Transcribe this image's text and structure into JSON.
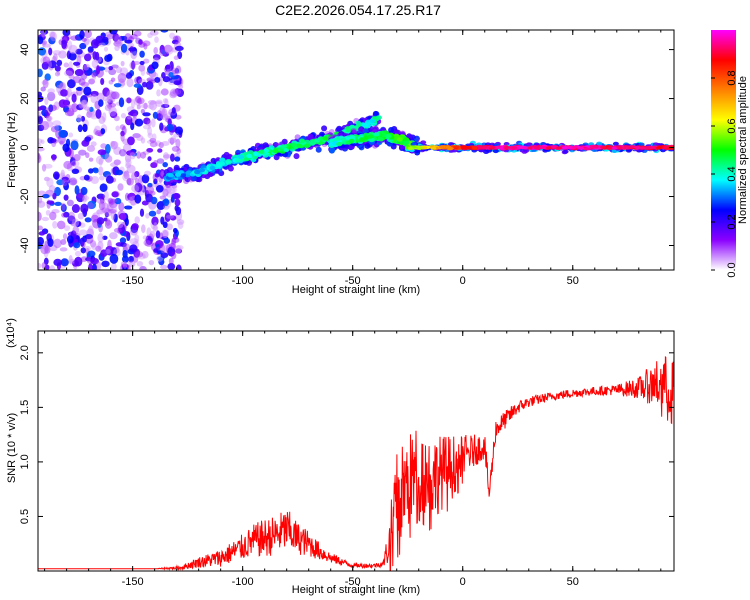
{
  "title": "C2E2.2026.054.17.25.R17",
  "chart_data": [
    {
      "type": "heatmap",
      "xlabel": "Height of straight line (km)",
      "ylabel": "Frequency (Hz)",
      "xlim": [
        -193,
        96
      ],
      "ylim": [
        -50,
        48
      ],
      "xticks": [
        -150,
        -100,
        -50,
        0,
        50
      ],
      "yticks": [
        -40,
        -20,
        0,
        20,
        40
      ],
      "colorbar": {
        "label": "Normalized spectral amplitude",
        "range": [
          0,
          1
        ],
        "ticks": [
          "0.0",
          "0.2",
          "0.4",
          "0.6",
          "0.8"
        ],
        "colormap": [
          "#ffffff",
          "#8b00ff",
          "#0000ff",
          "#00ffff",
          "#00ff00",
          "#ffff00",
          "#ff8000",
          "#ff0000",
          "#ff00ff"
        ]
      },
      "features": [
        {
          "name": "noise",
          "x_range": [
            -193,
            -128
          ],
          "freq_range": [
            -50,
            48
          ],
          "amplitude": [
            0.05,
            0.3
          ]
        },
        {
          "name": "rising_track",
          "x": [
            -135,
            -120,
            -100,
            -80,
            -60,
            -45,
            -38
          ],
          "freq": [
            -12,
            -10,
            -4,
            0,
            4,
            9,
            12
          ],
          "amplitude": [
            0.3,
            0.35,
            0.4,
            0.45,
            0.45,
            0.4,
            0.4
          ]
        },
        {
          "name": "secondary_track",
          "x": [
            -60,
            -45,
            -35,
            -28,
            -20
          ],
          "freq": [
            2,
            4,
            5,
            3,
            0
          ],
          "amplitude": [
            0.4,
            0.45,
            0.45,
            0.5,
            0.5
          ]
        },
        {
          "name": "carrier",
          "x": [
            -25,
            0,
            20,
            50,
            96
          ],
          "freq": [
            0,
            0,
            0,
            0,
            0
          ],
          "amplitude": [
            0.6,
            0.9,
            1.0,
            1.0,
            0.95
          ]
        }
      ]
    },
    {
      "type": "line",
      "xlabel": "Height of straight line (km)",
      "ylabel": "SNR (10 * v/v)",
      "scale_label": "(x10⁴)",
      "xlim": [
        -193,
        96
      ],
      "ylim": [
        0,
        2.2
      ],
      "xticks": [
        -150,
        -100,
        -50,
        0,
        50
      ],
      "yticks": [
        "0.5",
        "1.0",
        "1.5",
        "2.0"
      ],
      "series": [
        {
          "color": "#ff0000",
          "x": [
            -193,
            -140,
            -128,
            -120,
            -110,
            -100,
            -95,
            -90,
            -85,
            -80,
            -75,
            -70,
            -65,
            -60,
            -50,
            -40,
            -36,
            -33,
            -30,
            -25,
            -20,
            -15,
            -10,
            -5,
            0,
            5,
            10,
            12,
            15,
            20,
            25,
            30,
            40,
            50,
            60,
            70,
            80,
            90,
            96
          ],
          "y": [
            0.02,
            0.02,
            0.03,
            0.08,
            0.12,
            0.22,
            0.28,
            0.3,
            0.33,
            0.38,
            0.3,
            0.25,
            0.18,
            0.12,
            0.05,
            0.05,
            0.07,
            0.3,
            0.65,
            0.8,
            0.95,
            0.85,
            0.9,
            0.95,
            1.05,
            1.1,
            1.15,
            0.7,
            1.3,
            1.4,
            1.5,
            1.55,
            1.6,
            1.63,
            1.65,
            1.66,
            1.68,
            1.72,
            1.7
          ],
          "noise": [
            0,
            0,
            0.02,
            0.05,
            0.08,
            0.12,
            0.15,
            0.18,
            0.18,
            0.2,
            0.15,
            0.12,
            0.08,
            0.05,
            0.02,
            0.02,
            0.03,
            0.25,
            0.45,
            0.45,
            0.4,
            0.4,
            0.35,
            0.3,
            0.2,
            0.15,
            0.12,
            0.1,
            0.1,
            0.08,
            0.06,
            0.05,
            0.04,
            0.04,
            0.04,
            0.05,
            0.1,
            0.25,
            0.3
          ]
        }
      ]
    }
  ]
}
